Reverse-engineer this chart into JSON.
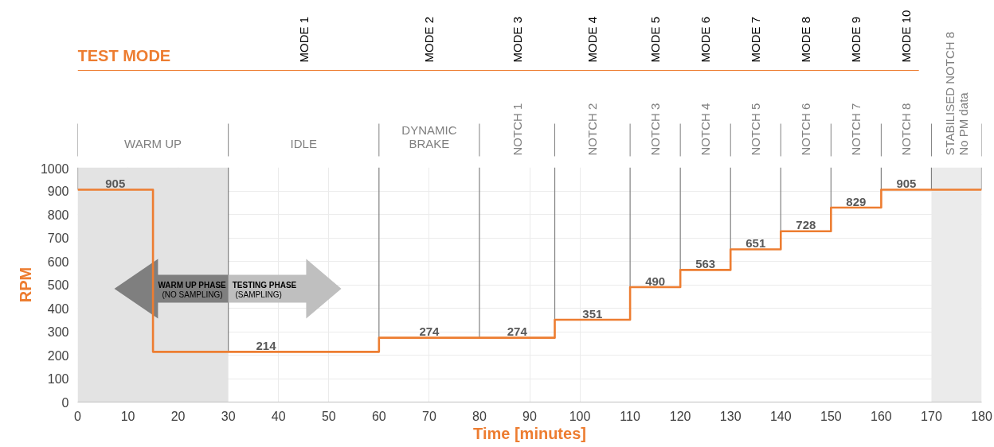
{
  "chart_data": {
    "type": "step",
    "xlabel": "Time [minutes]",
    "ylabel": "RPM",
    "x": [
      0,
      15,
      60,
      80,
      95,
      110,
      120,
      130,
      140,
      150,
      160,
      170,
      180
    ],
    "series": [
      {
        "color": "#ed7d31",
        "values": [
          905,
          214,
          274,
          274,
          351,
          490,
          563,
          651,
          728,
          829,
          905,
          905,
          905
        ]
      }
    ],
    "value_labels": [
      "905",
      "214",
      "274",
      "274",
      "351",
      "490",
      "563",
      "651",
      "728",
      "829",
      "905",
      null,
      null
    ],
    "xlim": [
      0,
      180
    ],
    "xticks": [
      0,
      10,
      20,
      30,
      40,
      50,
      60,
      70,
      80,
      90,
      100,
      110,
      120,
      130,
      140,
      150,
      160,
      170,
      180
    ],
    "ylim": [
      0,
      1000
    ],
    "yticks": [
      0,
      100,
      200,
      300,
      400,
      500,
      600,
      700,
      800,
      900,
      1000
    ],
    "grid": true,
    "ref_lines": [
      {
        "axis": "x",
        "value": 0
      },
      {
        "axis": "x",
        "value": 30
      },
      {
        "axis": "x",
        "value": 60
      },
      {
        "axis": "x",
        "value": 80
      },
      {
        "axis": "x",
        "value": 95
      },
      {
        "axis": "x",
        "value": 110
      },
      {
        "axis": "x",
        "value": 120
      },
      {
        "axis": "x",
        "value": 130
      },
      {
        "axis": "x",
        "value": 140
      },
      {
        "axis": "x",
        "value": 150
      },
      {
        "axis": "x",
        "value": 160
      },
      {
        "axis": "x",
        "value": 170
      },
      {
        "axis": "x",
        "value": 180
      }
    ],
    "bands": [
      {
        "axis": "x",
        "from": 0,
        "to": 30,
        "color": "#e3e3e3"
      },
      {
        "axis": "x",
        "from": 170,
        "to": 180,
        "color": "#ebebeb"
      }
    ],
    "annotations": [
      "TEST MODE",
      "WARM UP",
      "IDLE",
      "DYNAMIC BRAKE",
      "NOTCH 1",
      "NOTCH 2",
      "NOTCH 3",
      "NOTCH 4",
      "NOTCH 5",
      "NOTCH 6",
      "NOTCH 7",
      "NOTCH 8",
      "STABILISED  NOTCH 8\nNo PM data",
      "MODE 1",
      "MODE 2",
      "MODE 3",
      "MODE 4",
      "MODE 5",
      "MODE 6",
      "MODE 7",
      "MODE 8",
      "MODE 9",
      "MODE 10",
      "WARM UP PHASE",
      "(NO SAMPLING)",
      "TESTING PHASE",
      "(SAMPLING)"
    ]
  }
}
